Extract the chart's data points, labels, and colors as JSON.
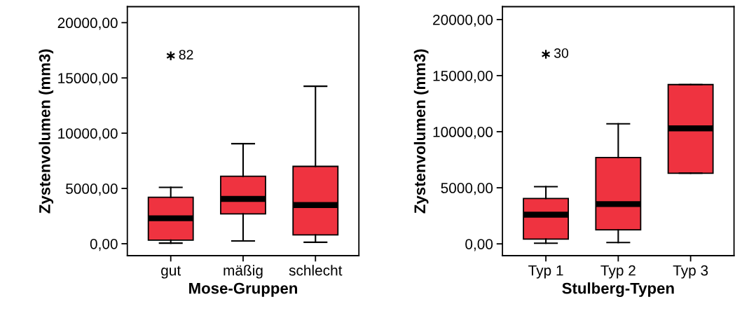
{
  "chart_data": [
    {
      "type": "box",
      "xlabel": "Mose-Gruppen",
      "ylabel": "Zystenvolumen (mm3)",
      "categories": [
        "gut",
        "mäßig",
        "schlecht"
      ],
      "color": "#ef3340",
      "boxes": [
        {
          "low": 50,
          "q1": 320,
          "median": 2300,
          "q3": 4200,
          "high": 5100,
          "outliers": [
            17000
          ]
        },
        {
          "low": 250,
          "q1": 2700,
          "median": 4050,
          "q3": 6100,
          "high": 9050
        },
        {
          "low": 130,
          "q1": 800,
          "median": 3500,
          "q3": 7000,
          "high": 14250
        }
      ],
      "ylim": [
        -1080,
        21450
      ],
      "yticks": [
        {
          "value": 0,
          "label": "0,00"
        },
        {
          "value": 5000,
          "label": "5000,00"
        },
        {
          "value": 10000,
          "label": "10000,00"
        },
        {
          "value": 15000,
          "label": "15000,00"
        },
        {
          "value": 20000,
          "label": "20000,00"
        }
      ],
      "annotations": [
        "82"
      ],
      "grid": false,
      "legend": false
    },
    {
      "type": "box",
      "xlabel": "Stulberg-Typen",
      "ylabel": "Zystenvolumen (mm3)",
      "categories": [
        "Typ 1",
        "Typ 2",
        "Typ 3"
      ],
      "color": "#ef3340",
      "boxes": [
        {
          "low": 60,
          "q1": 430,
          "median": 2600,
          "q3": 4050,
          "high": 5100,
          "outliers": [
            16900
          ]
        },
        {
          "low": 120,
          "q1": 1250,
          "median": 3550,
          "q3": 7700,
          "high": 10700
        },
        {
          "low": 6300,
          "q1": 6300,
          "median": 10300,
          "q3": 14200,
          "high": 14200
        }
      ],
      "ylim": [
        -1050,
        21150
      ],
      "yticks": [
        {
          "value": 0,
          "label": "0,00"
        },
        {
          "value": 5000,
          "label": "5000,00"
        },
        {
          "value": 10000,
          "label": "10000,00"
        },
        {
          "value": 15000,
          "label": "15000,00"
        },
        {
          "value": 20000,
          "label": "20000,00"
        }
      ],
      "annotations": [
        "30"
      ],
      "grid": false,
      "legend": false
    }
  ]
}
